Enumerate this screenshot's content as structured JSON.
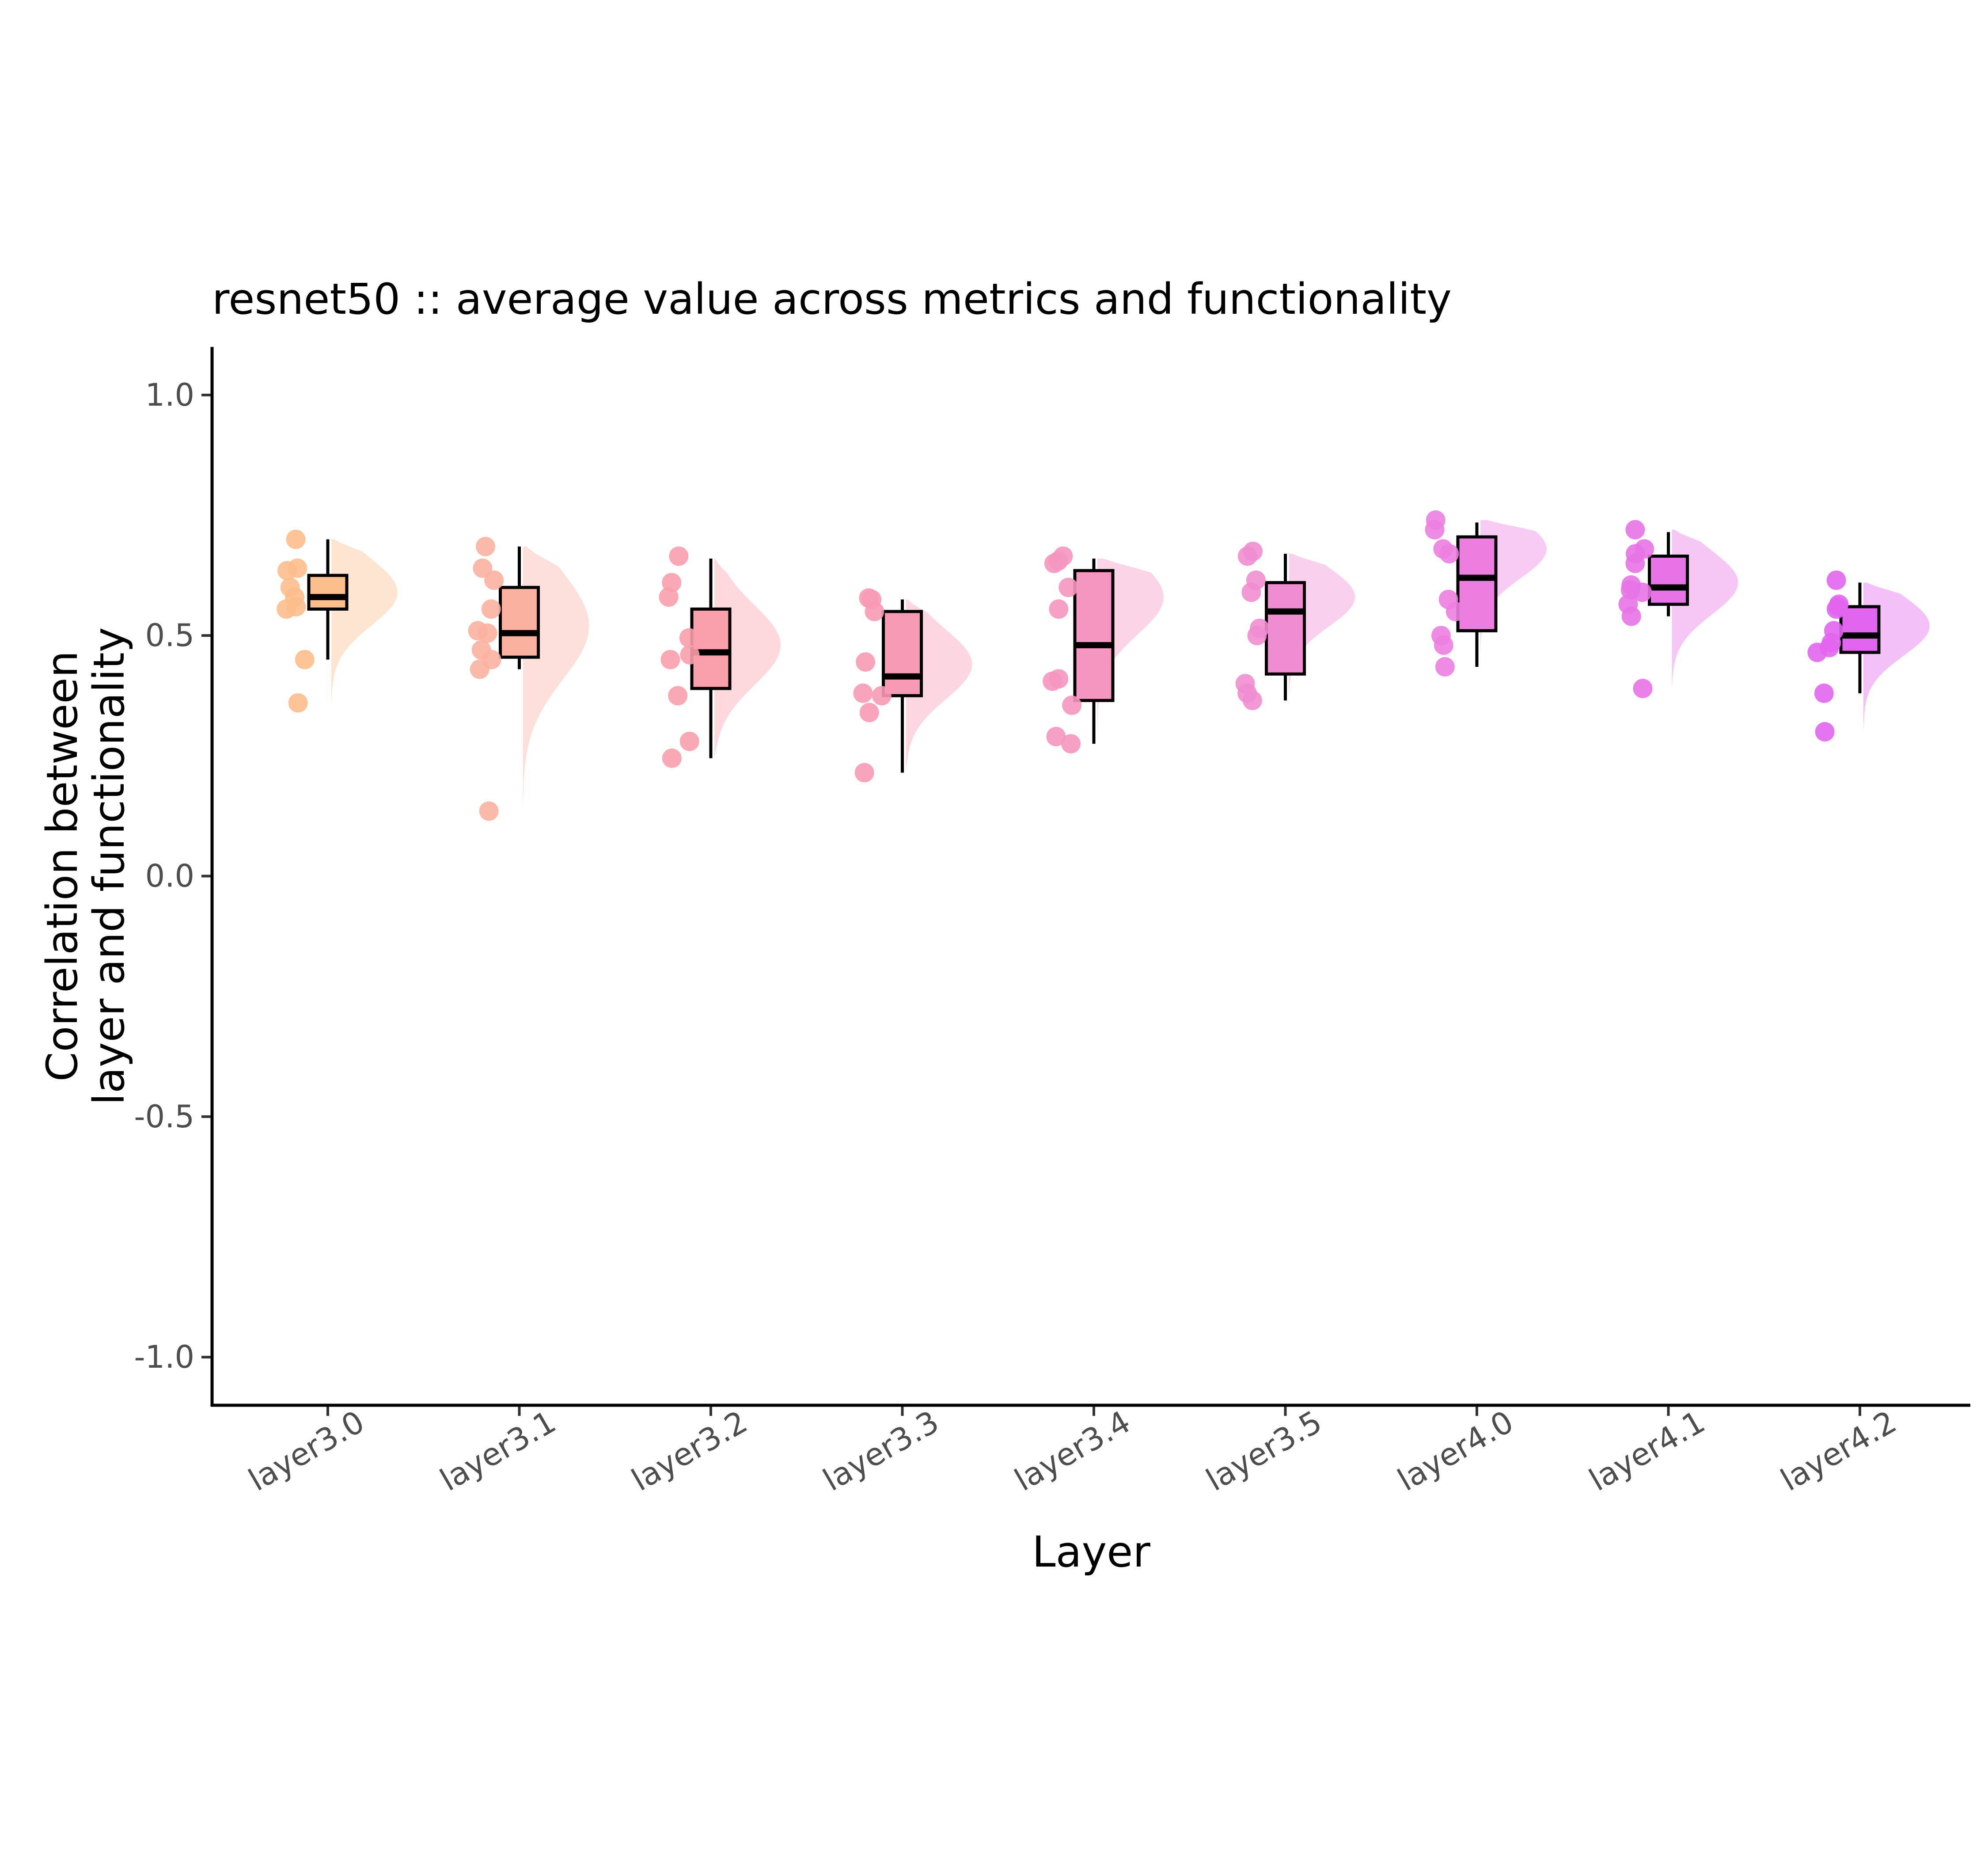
{
  "chart_data": {
    "type": "raincloud",
    "title": "resnet50 :: average value across metrics and functionality",
    "xlabel": "Layer",
    "ylabel_lines": [
      "Correlation between",
      "layer and functionality"
    ],
    "ylim": [
      -1.1,
      1.1
    ],
    "yticks": [
      1.0,
      0.5,
      0.0,
      -0.5,
      -1.0
    ],
    "ytick_labels": [
      "1.0",
      "0.5",
      "0.0",
      "-0.5",
      "-1.0"
    ],
    "grid": false,
    "legend": "none",
    "categories": [
      {
        "label": "layer3.0",
        "color": "#FDBE8D",
        "box": {
          "min": 0.45,
          "q1": 0.555,
          "median": 0.58,
          "q3": 0.625,
          "max": 0.7
        },
        "density_range": [
          0.355,
          0.7
        ],
        "density_peak": 0.59,
        "points": [
          0.7,
          0.64,
          0.635,
          0.6,
          0.58,
          0.56,
          0.555,
          0.45,
          0.36
        ]
      },
      {
        "label": "layer3.1",
        "color": "#FBB1A0",
        "box": {
          "min": 0.43,
          "q1": 0.455,
          "median": 0.505,
          "q3": 0.6,
          "max": 0.685
        },
        "density_range": [
          0.13,
          0.685
        ],
        "density_peak": 0.52,
        "points": [
          0.685,
          0.64,
          0.615,
          0.555,
          0.51,
          0.505,
          0.47,
          0.45,
          0.43,
          0.135
        ]
      },
      {
        "label": "layer3.2",
        "color": "#F9A0AC",
        "box": {
          "min": 0.245,
          "q1": 0.39,
          "median": 0.465,
          "q3": 0.555,
          "max": 0.66
        },
        "density_range": [
          0.245,
          0.66
        ],
        "density_peak": 0.48,
        "points": [
          0.665,
          0.61,
          0.58,
          0.495,
          0.46,
          0.45,
          0.375,
          0.28,
          0.245
        ]
      },
      {
        "label": "layer3.3",
        "color": "#F79AB4",
        "box": {
          "min": 0.215,
          "q1": 0.375,
          "median": 0.415,
          "q3": 0.55,
          "max": 0.575
        },
        "density_range": [
          0.215,
          0.575
        ],
        "density_peak": 0.44,
        "points": [
          0.578,
          0.575,
          0.55,
          0.445,
          0.38,
          0.375,
          0.34,
          0.215
        ]
      },
      {
        "label": "layer3.4",
        "color": "#F596C0",
        "box": {
          "min": 0.275,
          "q1": 0.365,
          "median": 0.48,
          "q3": 0.635,
          "max": 0.66
        },
        "density_range": [
          0.27,
          0.66
        ],
        "density_peak": 0.58,
        "points": [
          0.665,
          0.655,
          0.65,
          0.6,
          0.555,
          0.41,
          0.405,
          0.355,
          0.29,
          0.275
        ]
      },
      {
        "label": "layer3.5",
        "color": "#F08DD0",
        "box": {
          "min": 0.365,
          "q1": 0.42,
          "median": 0.55,
          "q3": 0.61,
          "max": 0.67
        },
        "density_range": [
          0.365,
          0.67
        ],
        "density_peak": 0.58,
        "points": [
          0.675,
          0.665,
          0.615,
          0.59,
          0.515,
          0.5,
          0.4,
          0.38,
          0.365
        ]
      },
      {
        "label": "layer4.0",
        "color": "#EC7EE0",
        "box": {
          "min": 0.435,
          "q1": 0.51,
          "median": 0.62,
          "q3": 0.705,
          "max": 0.735
        },
        "density_range": [
          0.435,
          0.74
        ],
        "density_peak": 0.68,
        "points": [
          0.74,
          0.72,
          0.68,
          0.67,
          0.575,
          0.55,
          0.5,
          0.48,
          0.435
        ]
      },
      {
        "label": "layer4.1",
        "color": "#E873E6",
        "box": {
          "min": 0.54,
          "q1": 0.565,
          "median": 0.6,
          "q3": 0.665,
          "max": 0.715
        },
        "density_range": [
          0.39,
          0.72
        ],
        "density_peak": 0.61,
        "points": [
          0.72,
          0.68,
          0.67,
          0.65,
          0.605,
          0.595,
          0.59,
          0.565,
          0.54,
          0.39
        ]
      },
      {
        "label": "layer4.2",
        "color": "#E265EE",
        "box": {
          "min": 0.38,
          "q1": 0.465,
          "median": 0.5,
          "q3": 0.56,
          "max": 0.61
        },
        "density_range": [
          0.3,
          0.61
        ],
        "density_peak": 0.52,
        "points": [
          0.615,
          0.565,
          0.56,
          0.555,
          0.51,
          0.485,
          0.475,
          0.465,
          0.38,
          0.3
        ]
      }
    ]
  }
}
